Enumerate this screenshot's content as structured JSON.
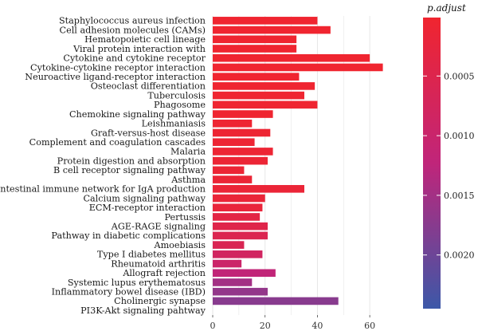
{
  "chart_data": {
    "type": "bar",
    "orientation": "horizontal",
    "categories": [
      "Staphylococcus aureus infection",
      "Cell adhesion molecules (CAMs)",
      "Hematopoietic cell lineage",
      "Viral protein interaction with",
      "Cytokine and cytokine receptor",
      "Cytokine-cytokine receptor interaction",
      "Neuroactive ligand-receptor interaction",
      "Osteoclast differentiation",
      "Tuberculosis",
      "Phagosome",
      "Chemokine signaling pathway",
      "Leishmaniasis",
      "Graft-versus-host disease",
      "Complement and coagulation cascades",
      "Malaria",
      "Protein digestion and absorption",
      "B cell receptor signaling pathway",
      "Asthma",
      "Intestinal immune network for IgA production",
      "Calcium signaling pathway",
      "ECM-receptor interaction",
      "Pertussis",
      "AGE-RAGE signaling",
      "Pathway in diabetic complications",
      "Amoebiasis",
      "Type I diabetes mellitus",
      "Rheumatoid arthritis",
      "Allograft rejection",
      "Systemic lupus erythematosus",
      "Inflammatory bowel disease (IBD)",
      "Cholinergic synapse",
      "PI3K-Akt signaling pahtway"
    ],
    "values": [
      40,
      45,
      32,
      32,
      60,
      65,
      33,
      39,
      35,
      40,
      23,
      15,
      22,
      16,
      23,
      21,
      12,
      15,
      35,
      20,
      19,
      18,
      21,
      21,
      12,
      19,
      11,
      24,
      15,
      21,
      48,
      0
    ],
    "p_adjust": [
      2e-05,
      2e-05,
      3e-05,
      3e-05,
      3e-05,
      2e-05,
      2e-05,
      4e-05,
      4e-05,
      4e-05,
      3e-05,
      6e-05,
      8e-05,
      9e-05,
      9e-05,
      0.0001,
      0.00011,
      0.00013,
      0.00014,
      0.00015,
      0.0002,
      0.00035,
      0.00045,
      0.00055,
      0.0006,
      0.0008,
      0.00095,
      0.0012,
      0.0015,
      0.00165,
      0.00175,
      0.0024
    ],
    "xlim": [
      0,
      70
    ],
    "xticks": [
      0,
      20,
      40,
      60
    ],
    "title": "",
    "xlabel": "",
    "ylabel": "",
    "grid": true,
    "legend": {
      "title": "p.adjust",
      "position": "right",
      "type": "colorbar",
      "range": [
        1e-05,
        0.00245
      ],
      "ticks": [
        {
          "value": 0.0005,
          "label": "0.0005"
        },
        {
          "value": 0.001,
          "label": "0.0010"
        },
        {
          "value": 0.0015,
          "label": "0.0015"
        },
        {
          "value": 0.002,
          "label": "0.0020"
        }
      ]
    },
    "colors": {
      "low": "#f0252f",
      "mid": "#c0257a",
      "high": "#3c58a8"
    },
    "background": "#ffffff",
    "grid_color": "#e6e6e6"
  }
}
